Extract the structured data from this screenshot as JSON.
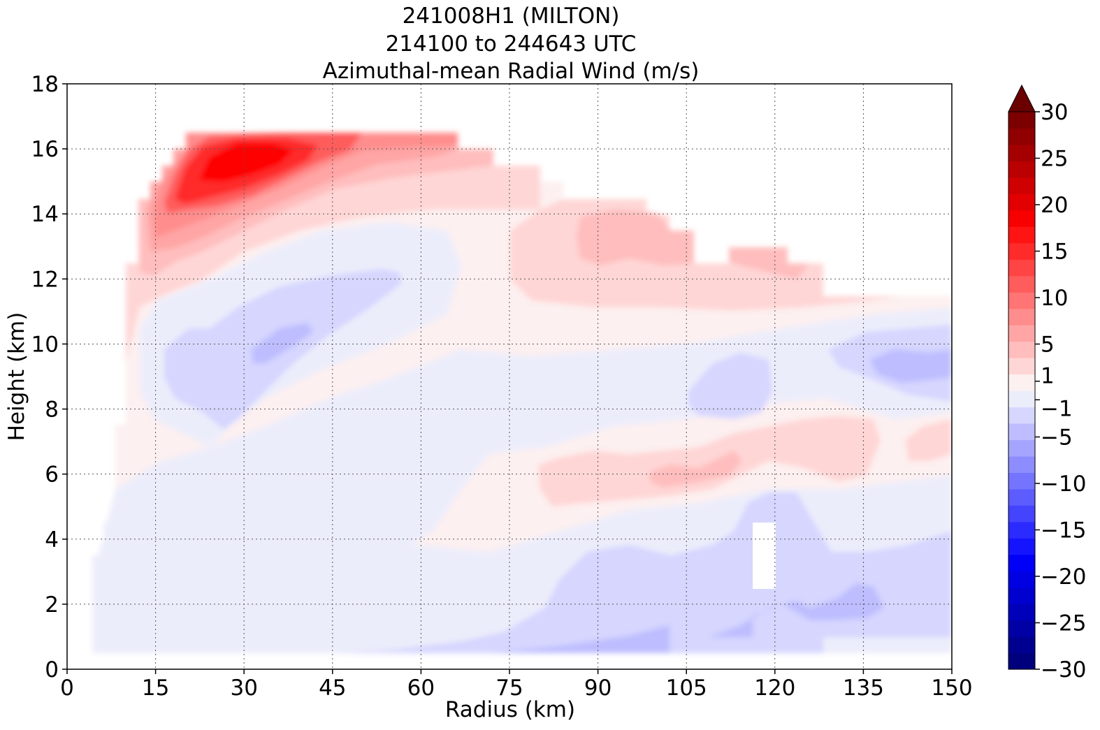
{
  "chart_data": {
    "type": "filled-contour",
    "title_lines": [
      "241008H1 (MILTON)",
      "214100 to 244643 UTC",
      "Azimuthal-mean Radial Wind (m/s)"
    ],
    "xlabel": "Radius (km)",
    "ylabel": "Height (km)",
    "xlim": [
      0,
      150
    ],
    "ylim": [
      0,
      18
    ],
    "xticks": [
      0,
      15,
      30,
      45,
      60,
      75,
      90,
      105,
      120,
      135,
      150
    ],
    "yticks": [
      0,
      2,
      4,
      6,
      8,
      10,
      12,
      14,
      16,
      18
    ],
    "grid": true,
    "colorbar": {
      "ticks": [
        30,
        25,
        20,
        15,
        10,
        5,
        1,
        -1,
        -5,
        -10,
        -15,
        -20,
        -25,
        -30
      ],
      "tick_labels": [
        "30",
        "25",
        "20",
        "15",
        "10",
        "5",
        "1",
        "−1",
        "−5",
        "−10",
        "−15",
        "−20",
        "−25",
        "−30"
      ],
      "range": [
        -30,
        30
      ],
      "extend": "max",
      "colors": [
        "#00007d",
        "#000090",
        "#0000a5",
        "#0000ba",
        "#0000cf",
        "#0000e3",
        "#0000f8",
        "#1414ff",
        "#2b2bff",
        "#4444ff",
        "#5c5cff",
        "#7474ff",
        "#8d8dff",
        "#a5a5ff",
        "#bdbdff",
        "#d6d6ff",
        "#ecedfb",
        "#fdf0f0",
        "#ffd6d6",
        "#ffbdbd",
        "#ffa5a5",
        "#ff8d8d",
        "#ff7474",
        "#ff5c5c",
        "#ff4444",
        "#ff2b2b",
        "#ff1414",
        "#f80000",
        "#e30000",
        "#cf0000",
        "#ba0000",
        "#a50000",
        "#900000",
        "#7d0000"
      ],
      "extend_color": "#6a0000"
    }
  }
}
